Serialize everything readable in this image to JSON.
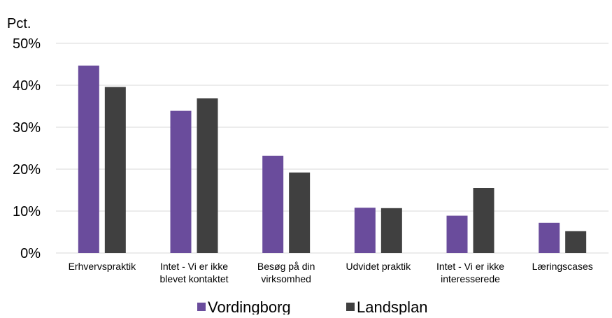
{
  "chart_data": {
    "type": "bar",
    "ylabel": "Pct.",
    "ylim": [
      0,
      50
    ],
    "y_ticks": [
      {
        "value": 0,
        "label": "0%"
      },
      {
        "value": 10,
        "label": "10%"
      },
      {
        "value": 20,
        "label": "20%"
      },
      {
        "value": 30,
        "label": "30%"
      },
      {
        "value": 40,
        "label": "40%"
      },
      {
        "value": 50,
        "label": "50%"
      }
    ],
    "categories": [
      [
        "Erhvervspraktik"
      ],
      [
        "Intet - Vi er ikke",
        "blevet kontaktet"
      ],
      [
        "Besøg på din",
        "virksomhed"
      ],
      [
        "Udvidet praktik"
      ],
      [
        "Intet - Vi er ikke",
        "interesserede"
      ],
      [
        "Læringscases"
      ]
    ],
    "series": [
      {
        "name": "Vordingborg",
        "color": "#6a4c9c",
        "values": [
          44.7,
          33.9,
          23.2,
          10.8,
          8.9,
          7.2
        ]
      },
      {
        "name": "Landsplan",
        "color": "#404040",
        "values": [
          39.6,
          36.9,
          19.2,
          10.7,
          15.5,
          5.2
        ]
      }
    ],
    "grid": true,
    "legend_position": "bottom"
  }
}
